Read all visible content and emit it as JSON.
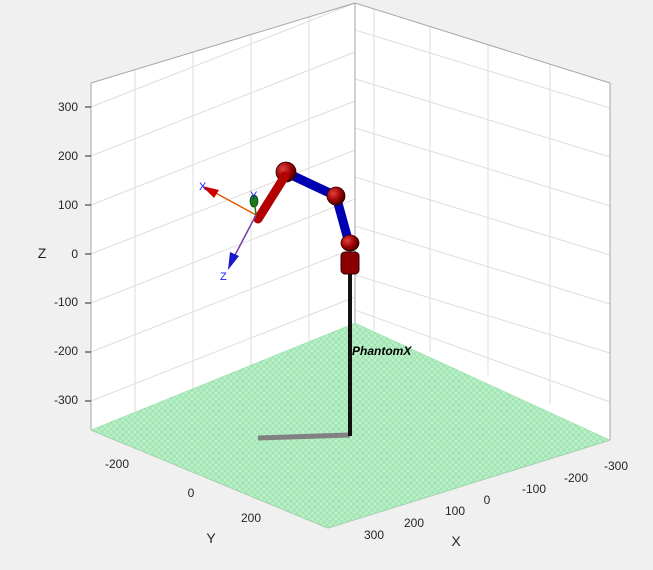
{
  "axes": {
    "x_label": "X",
    "y_label": "Y",
    "z_label": "Z",
    "x_ticks": [
      "-300",
      "-200",
      "-100",
      "0",
      "100",
      "200",
      "300"
    ],
    "y_ticks": [
      "-200",
      "0",
      "200"
    ],
    "z_ticks": [
      "300",
      "200",
      "100",
      "0",
      "-100",
      "-200",
      "-300"
    ]
  },
  "robot": {
    "name": "PhantomX",
    "link_color": "#0000cc",
    "joint_color": "#b30000",
    "base_color": "#111111",
    "shadow_color": "#808080",
    "floor_color": "#a8e8b8"
  },
  "tool_frame": {
    "x_label": "X",
    "y_label": "Y",
    "z_label": "Z"
  },
  "colors": {
    "background": "#f0f0f0",
    "grid": "#dcdcdc",
    "box_line": "#a6a6a6"
  }
}
